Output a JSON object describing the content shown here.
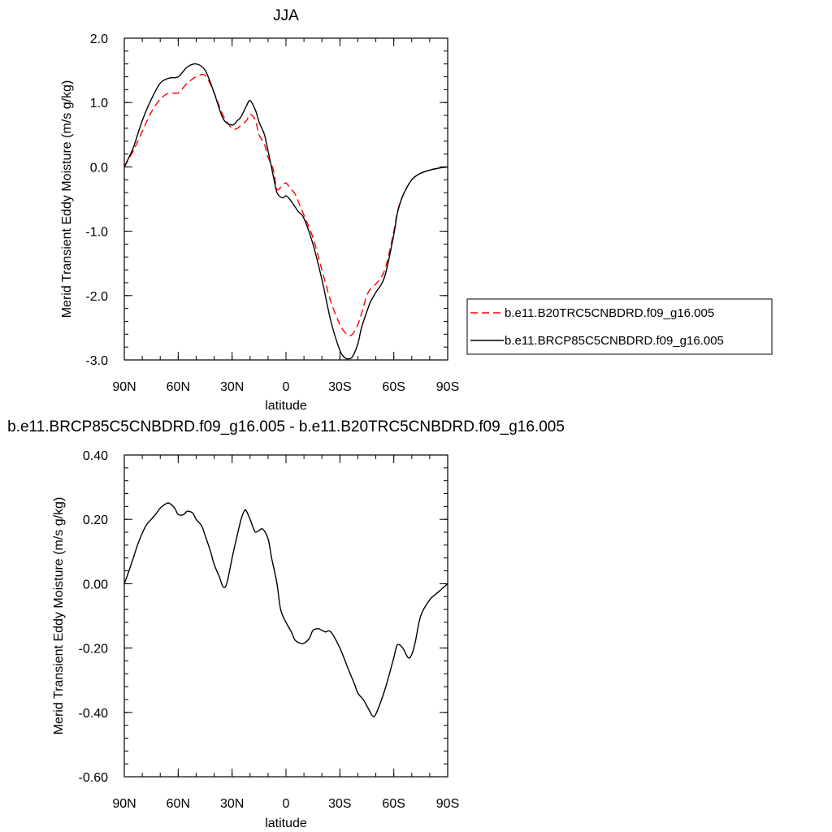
{
  "chart_data": [
    {
      "type": "line",
      "title": "JJA",
      "xlabel": "latitude",
      "ylabel": "Merid Transient Eddy Moisture (m/s g/kg)",
      "xlim": [
        90,
        -90
      ],
      "ylim": [
        -3.0,
        2.0
      ],
      "xticks": [
        90,
        60,
        30,
        0,
        -30,
        -60,
        -90
      ],
      "xtick_labels": [
        "90N",
        "60N",
        "30N",
        "0",
        "30S",
        "60S",
        "90S"
      ],
      "yticks": [
        -3.0,
        -2.0,
        -1.0,
        0.0,
        1.0,
        2.0
      ],
      "ytick_labels": [
        "-3.0",
        "-2.0",
        "-1.0",
        "0.0",
        "1.0",
        "2.0"
      ],
      "grid": false,
      "legend_position": "right",
      "series": [
        {
          "name": "b.e11.B20TRC5CNBDRD.f09_g16.005",
          "color": "#ff0000",
          "style": "dashed",
          "x": [
            90,
            85,
            80,
            75,
            70,
            65,
            60,
            55,
            50,
            45,
            40,
            35,
            30,
            27,
            25,
            22,
            20,
            17,
            15,
            12,
            10,
            7,
            5,
            2,
            0,
            -2,
            -5,
            -7,
            -10,
            -15,
            -20,
            -25,
            -30,
            -33,
            -35,
            -37,
            -40,
            -42,
            -45,
            -47,
            -50,
            -55,
            -60,
            -62,
            -65,
            -70,
            -75,
            -80,
            -85,
            -90
          ],
          "y": [
            0.0,
            0.25,
            0.55,
            0.85,
            1.05,
            1.15,
            1.15,
            1.3,
            1.4,
            1.42,
            1.15,
            0.8,
            0.6,
            0.6,
            0.65,
            0.72,
            0.82,
            0.72,
            0.5,
            0.35,
            0.15,
            -0.05,
            -0.35,
            -0.28,
            -0.25,
            -0.32,
            -0.42,
            -0.55,
            -0.75,
            -1.1,
            -1.6,
            -2.1,
            -2.45,
            -2.58,
            -2.62,
            -2.6,
            -2.45,
            -2.28,
            -2.0,
            -1.9,
            -1.82,
            -1.6,
            -1.0,
            -0.7,
            -0.45,
            -0.2,
            -0.1,
            -0.05,
            -0.02,
            0.0
          ]
        },
        {
          "name": "b.e11.BRCP85C5CNBDRD.f09_g16.005",
          "color": "#000000",
          "style": "solid",
          "x": [
            90,
            85,
            80,
            75,
            70,
            65,
            60,
            55,
            50,
            45,
            40,
            35,
            30,
            27,
            25,
            22,
            20,
            17,
            15,
            12,
            10,
            7,
            5,
            2,
            0,
            -2,
            -5,
            -7,
            -10,
            -15,
            -20,
            -25,
            -30,
            -33,
            -35,
            -37,
            -40,
            -42,
            -45,
            -47,
            -50,
            -55,
            -60,
            -62,
            -65,
            -70,
            -75,
            -80,
            -85,
            -90
          ],
          "y": [
            0.0,
            0.3,
            0.72,
            1.05,
            1.3,
            1.38,
            1.4,
            1.55,
            1.6,
            1.5,
            1.15,
            0.75,
            0.65,
            0.72,
            0.78,
            0.95,
            1.03,
            0.88,
            0.7,
            0.5,
            0.25,
            -0.15,
            -0.4,
            -0.48,
            -0.45,
            -0.5,
            -0.62,
            -0.7,
            -0.8,
            -1.2,
            -1.75,
            -2.4,
            -2.85,
            -2.97,
            -2.98,
            -2.95,
            -2.75,
            -2.5,
            -2.25,
            -2.1,
            -1.95,
            -1.7,
            -1.05,
            -0.72,
            -0.45,
            -0.2,
            -0.1,
            -0.05,
            -0.02,
            0.0
          ]
        }
      ]
    },
    {
      "type": "line",
      "title": "b.e11.BRCP85C5CNBDRD.f09_g16.005 - b.e11.B20TRC5CNBDRD.f09_g16.005",
      "xlabel": "latitude",
      "ylabel": "Merid Transient Eddy Moisture (m/s g/kg)",
      "xlim": [
        90,
        -90
      ],
      "ylim": [
        -0.6,
        0.4
      ],
      "xticks": [
        90,
        60,
        30,
        0,
        -30,
        -60,
        -90
      ],
      "xtick_labels": [
        "90N",
        "60N",
        "30N",
        "0",
        "30S",
        "60S",
        "90S"
      ],
      "yticks": [
        -0.6,
        -0.4,
        -0.2,
        0.0,
        0.2,
        0.4
      ],
      "ytick_labels": [
        "-0.60",
        "-0.40",
        "-0.20",
        "0.00",
        "0.20",
        "0.40"
      ],
      "grid": false,
      "series": [
        {
          "color": "#000000",
          "style": "solid",
          "x": [
            90,
            88,
            85,
            82,
            78,
            75,
            72,
            70,
            67,
            65,
            62,
            60,
            57,
            55,
            52,
            50,
            47,
            45,
            42,
            40,
            37,
            35,
            33,
            30,
            28,
            25,
            23,
            22,
            20,
            18,
            17,
            15,
            13,
            10,
            8,
            5,
            3,
            0,
            -3,
            -5,
            -8,
            -10,
            -13,
            -15,
            -18,
            -20,
            -22,
            -25,
            -30,
            -35,
            -38,
            -40,
            -43,
            -45,
            -47,
            -48,
            -50,
            -55,
            -60,
            -62,
            -65,
            -68,
            -70,
            -72,
            -75,
            -80,
            -85,
            -90
          ],
          "y": [
            0.0,
            0.03,
            0.08,
            0.13,
            0.18,
            0.2,
            0.22,
            0.235,
            0.248,
            0.25,
            0.235,
            0.215,
            0.215,
            0.225,
            0.22,
            0.2,
            0.18,
            0.15,
            0.1,
            0.06,
            0.02,
            -0.01,
            0.0,
            0.08,
            0.13,
            0.2,
            0.228,
            0.225,
            0.2,
            0.17,
            0.16,
            0.165,
            0.17,
            0.14,
            0.08,
            0.0,
            -0.08,
            -0.12,
            -0.15,
            -0.175,
            -0.185,
            -0.185,
            -0.17,
            -0.145,
            -0.14,
            -0.145,
            -0.15,
            -0.15,
            -0.2,
            -0.27,
            -0.31,
            -0.34,
            -0.36,
            -0.38,
            -0.4,
            -0.41,
            -0.405,
            -0.33,
            -0.23,
            -0.19,
            -0.2,
            -0.23,
            -0.22,
            -0.18,
            -0.1,
            -0.05,
            -0.025,
            0.0
          ]
        }
      ]
    }
  ]
}
